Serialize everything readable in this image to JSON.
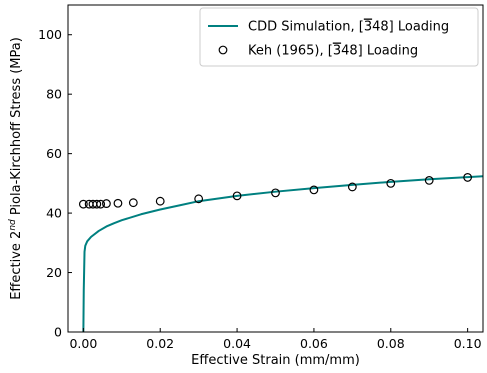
{
  "chart_data": {
    "type": "line",
    "xlabel": "Effective Strain (mm/mm)",
    "ylabel": {
      "prefix": "Effective 2",
      "superscript": "nd",
      "suffix": " Piola-Kirchhoff Stress (MPa)"
    },
    "xlim": [
      -0.004,
      0.104
    ],
    "ylim": [
      0,
      110
    ],
    "xticks": [
      0.0,
      0.02,
      0.04,
      0.06,
      0.08,
      0.1
    ],
    "xtick_labels": [
      "0.00",
      "0.02",
      "0.04",
      "0.06",
      "0.08",
      "0.10"
    ],
    "yticks": [
      0,
      20,
      40,
      60,
      80,
      100
    ],
    "ytick_labels": [
      "0",
      "20",
      "40",
      "60",
      "80",
      "100"
    ],
    "tick_direction": "in",
    "grid": false,
    "legend_position": "top-right",
    "series": [
      {
        "name": "CDD Simulation, [3̄ 48] Loading",
        "name_parts": {
          "pre": "CDD Simulation, [",
          "bar": "3",
          "post": "48] Loading"
        },
        "kind": "line",
        "color": "#008080",
        "x": [
          0.0,
          0.0001,
          0.0003,
          0.0005,
          0.001,
          0.002,
          0.004,
          0.006,
          0.008,
          0.01,
          0.015,
          0.02,
          0.025,
          0.03,
          0.04,
          0.05,
          0.06,
          0.07,
          0.08,
          0.09,
          0.1,
          0.104
        ],
        "y": [
          0.0,
          14.0,
          27.0,
          29.0,
          30.5,
          32.0,
          34.0,
          35.5,
          36.6,
          37.6,
          39.6,
          41.2,
          42.6,
          44.0,
          45.8,
          47.2,
          48.4,
          49.5,
          50.5,
          51.4,
          52.1,
          52.4
        ]
      },
      {
        "name": "Keh (1965), [3̄ 48] Loading",
        "name_parts": {
          "pre": "Keh (1965), [",
          "bar": "3",
          "post": "48] Loading"
        },
        "kind": "scatter",
        "color": "#000000",
        "x": [
          0.0,
          0.0015,
          0.0025,
          0.0035,
          0.0045,
          0.006,
          0.009,
          0.013,
          0.02,
          0.03,
          0.04,
          0.05,
          0.06,
          0.07,
          0.08,
          0.09,
          0.1
        ],
        "y": [
          43.0,
          43.0,
          43.0,
          43.0,
          43.0,
          43.2,
          43.3,
          43.5,
          44.0,
          44.8,
          45.8,
          46.8,
          47.8,
          48.8,
          50.0,
          51.0,
          52.0
        ]
      }
    ]
  }
}
